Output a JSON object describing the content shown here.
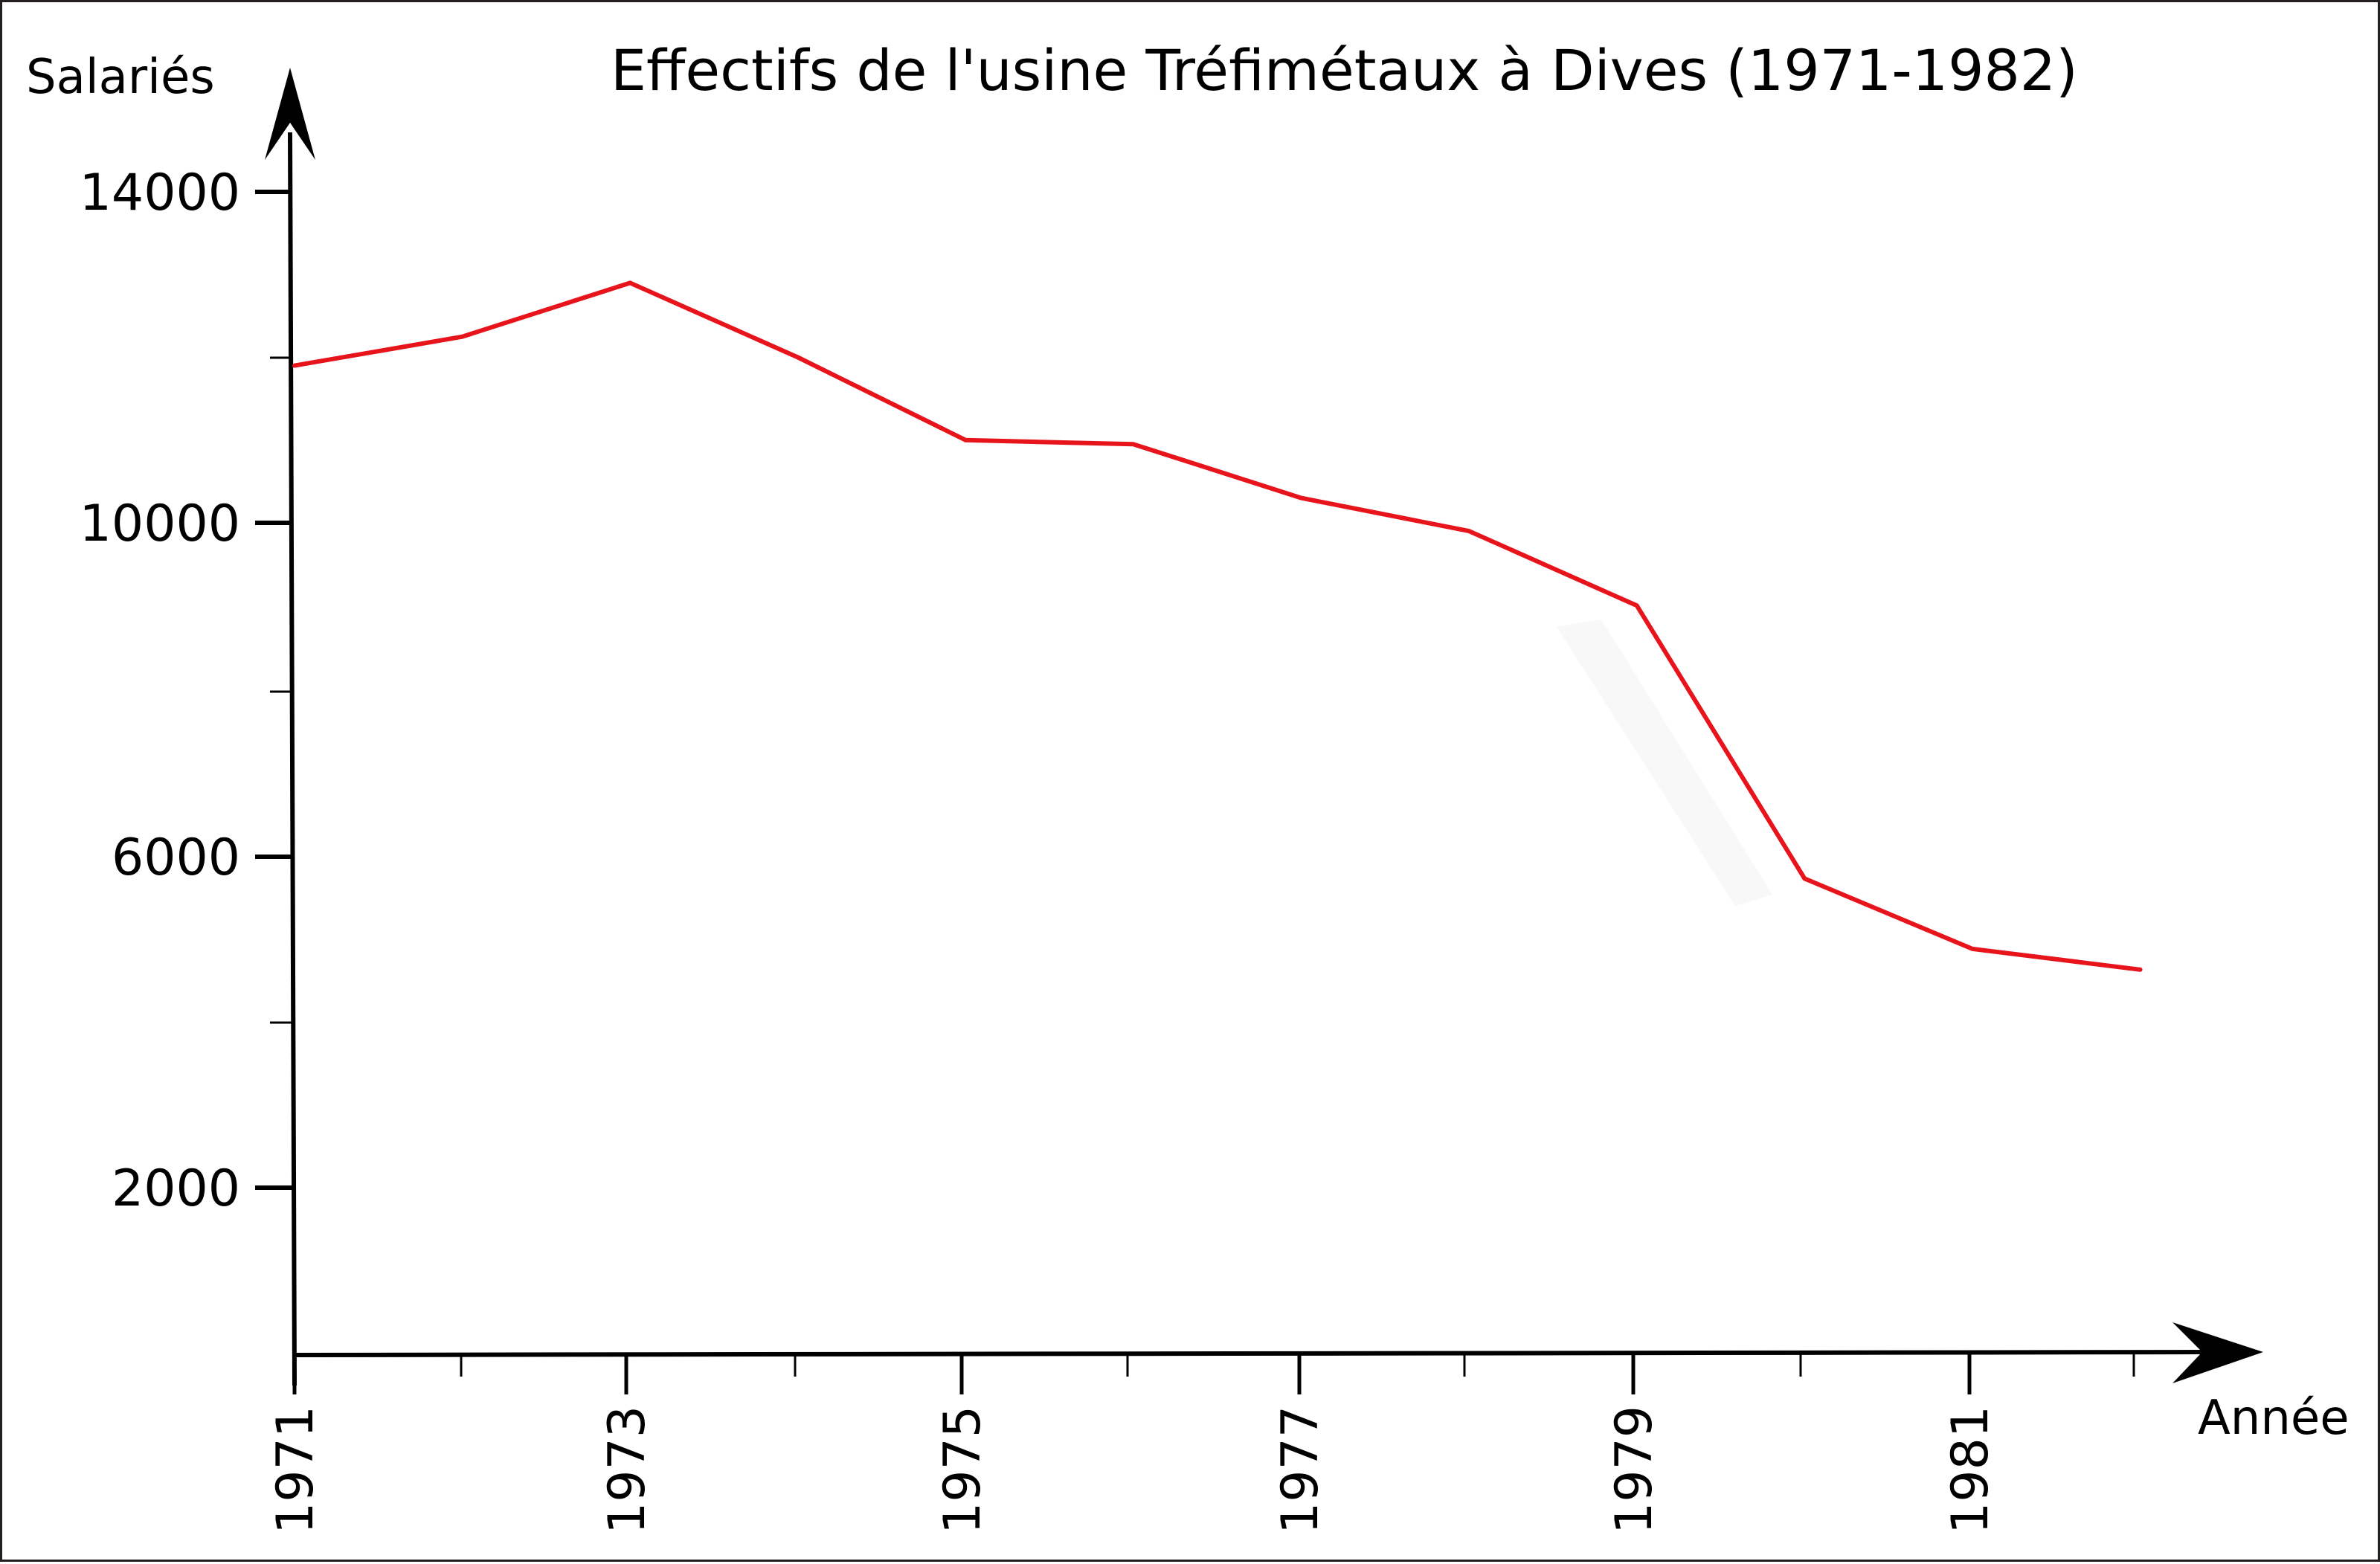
{
  "chart_data": {
    "type": "line",
    "title": "Effectifs de l'usine Tréfimétaux à Dives (1971-1982)",
    "xlabel": "Année",
    "ylabel": "Salariés",
    "x": [
      1971,
      1972,
      1973,
      1974,
      1975,
      1976,
      1977,
      1978,
      1979,
      1980,
      1981,
      1982
    ],
    "series": [
      {
        "name": "Salariés",
        "color": "#e8141c",
        "values": [
          11900,
          12250,
          12900,
          12000,
          11000,
          10950,
          10300,
          9900,
          9000,
          5700,
          4850,
          4600
        ]
      }
    ],
    "x_tick_labels": [
      "1971",
      "1973",
      "1975",
      "1977",
      "1979",
      "1981"
    ],
    "y_tick_labels": [
      "14000",
      "10000",
      "6000",
      "2000"
    ],
    "y_minor_ticks": [
      12000,
      8000,
      4000
    ],
    "ylim": [
      0,
      15000
    ],
    "xlim": [
      1971,
      1982.8
    ],
    "grid": false,
    "legend": "none"
  },
  "labels": {
    "title": "Effectifs de l'usine Tréfimétaux à Dives (1971-1982)",
    "y_axis": "Salariés",
    "x_axis": "Année",
    "y_ticks": [
      "14000",
      "10000",
      "6000",
      "2000"
    ],
    "x_ticks": [
      "1971",
      "1973",
      "1975",
      "1977",
      "1979",
      "1981"
    ]
  },
  "colors": {
    "line": "#e8141c",
    "axis": "#000000",
    "frame": "#231f20",
    "background": "#ffffff"
  }
}
